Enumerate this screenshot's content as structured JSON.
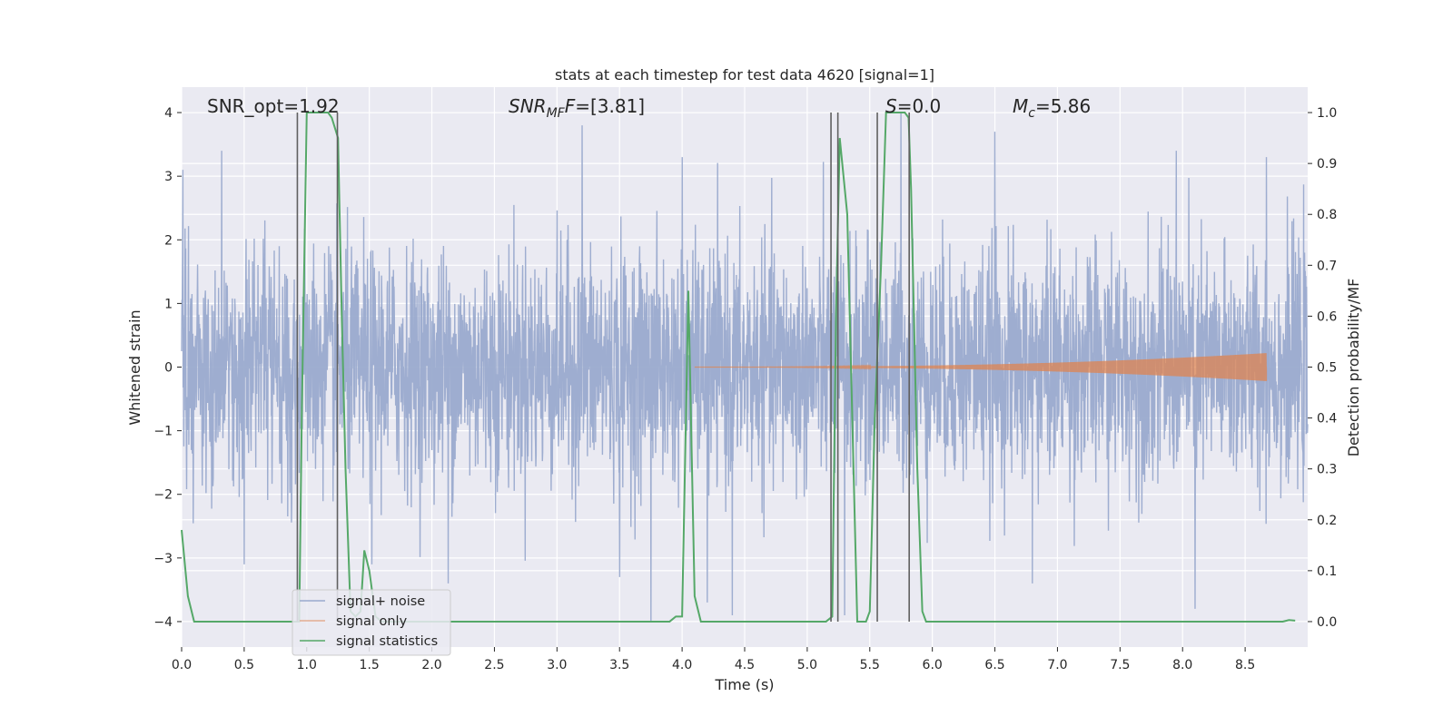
{
  "chart_data": {
    "type": "line",
    "title": "stats at each timestep for test data 4620 [signal=1]",
    "xlabel": "Time (s)",
    "ylabel": "Whitened strain",
    "ylabel_right": "Detection probability/MF",
    "xlim": [
      0,
      9.0
    ],
    "ylim": [
      -4.4,
      4.4
    ],
    "ylim_right": [
      -0.05,
      1.05
    ],
    "x_ticks": [
      0.0,
      0.5,
      1.0,
      1.5,
      2.0,
      2.5,
      3.0,
      3.5,
      4.0,
      4.5,
      5.0,
      5.5,
      6.0,
      6.5,
      7.0,
      7.5,
      8.0,
      8.5
    ],
    "x_tick_labels": [
      "0.0",
      "0.5",
      "1.0",
      "1.5",
      "2.0",
      "2.5",
      "3.0",
      "3.5",
      "4.0",
      "4.5",
      "5.0",
      "5.5",
      "6.0",
      "6.5",
      "7.0",
      "7.5",
      "8.0",
      "8.5"
    ],
    "y_ticks": [
      -4,
      -3,
      -2,
      -1,
      0,
      1,
      2,
      3,
      4
    ],
    "y_tick_labels": [
      "−4",
      "−3",
      "−2",
      "−1",
      "0",
      "1",
      "2",
      "3",
      "4"
    ],
    "y_ticks_right": [
      0.0,
      0.1,
      0.2,
      0.3,
      0.4,
      0.5,
      0.6,
      0.7,
      0.8,
      0.9,
      1.0
    ],
    "y_tick_labels_right": [
      "0.0",
      "0.1",
      "0.2",
      "0.3",
      "0.4",
      "0.5",
      "0.6",
      "0.7",
      "0.8",
      "0.9",
      "1.0"
    ],
    "grid": true,
    "legend_position": "lower-left",
    "annotations": {
      "snr_opt": "SNR_opt=1.92",
      "snr_mf_main": "SNR",
      "snr_mf_sub": "MF",
      "snr_mf_value": "=[3.81]",
      "s_label": "S",
      "s_value": "=0.0",
      "mc_main": "M",
      "mc_sub": "c",
      "mc_value": "=5.86"
    },
    "series": [
      {
        "name": "signal+ noise",
        "color": "#9aaace",
        "axis": "left",
        "description_kind": "dense noise, approx std 0.9, range about -3.9 to 3.8",
        "std": 0.9,
        "peaks": [
          {
            "x": 0.01,
            "y": 3.1
          },
          {
            "x": 0.32,
            "y": 3.4
          },
          {
            "x": 0.5,
            "y": -3.1
          },
          {
            "x": 1.52,
            "y": -3.1
          },
          {
            "x": 2.13,
            "y": -3.4
          },
          {
            "x": 3.2,
            "y": 3.8
          },
          {
            "x": 3.5,
            "y": -3.3
          },
          {
            "x": 3.75,
            "y": -4.0
          },
          {
            "x": 4.0,
            "y": 3.3
          },
          {
            "x": 4.2,
            "y": -3.7
          },
          {
            "x": 4.4,
            "y": -3.9
          },
          {
            "x": 5.3,
            "y": -3.9
          },
          {
            "x": 5.75,
            "y": 4.0
          },
          {
            "x": 6.5,
            "y": 3.7
          },
          {
            "x": 6.8,
            "y": -3.4
          },
          {
            "x": 7.95,
            "y": 3.4
          },
          {
            "x": 8.1,
            "y": -3.8
          },
          {
            "x": 8.67,
            "y": 3.3
          }
        ]
      },
      {
        "name": "signal only",
        "color": "#dd8452",
        "axis": "left",
        "chirp_start": 4.1,
        "chirp_end": 8.67,
        "final_amplitude": 0.22
      },
      {
        "name": "signal statistics",
        "color": "#55a868",
        "axis": "right",
        "x": [
          0.0,
          0.05,
          0.1,
          0.9,
          0.94,
          0.96,
          0.98,
          1.0,
          1.08,
          1.15,
          1.17,
          1.2,
          1.25,
          1.28,
          1.31,
          1.35,
          1.39,
          1.43,
          1.46,
          1.5,
          1.55,
          1.6,
          3.9,
          3.95,
          4.0,
          4.05,
          4.1,
          4.15,
          4.2,
          4.25,
          5.15,
          5.2,
          5.23,
          5.26,
          5.32,
          5.36,
          5.4,
          5.43,
          5.47,
          5.5,
          5.54,
          5.59,
          5.63,
          5.67,
          5.7,
          5.78,
          5.81,
          5.83,
          5.88,
          5.92,
          5.95,
          6.0,
          8.8,
          8.85,
          8.9
        ],
        "y": [
          0.18,
          0.05,
          0.0,
          0.0,
          0.0,
          0.4,
          0.7,
          1.0,
          1.0,
          1.0,
          1.0,
          0.99,
          0.95,
          0.6,
          0.3,
          0.02,
          0.01,
          0.02,
          0.14,
          0.1,
          0.01,
          0.0,
          0.0,
          0.01,
          0.01,
          0.65,
          0.05,
          0.0,
          0.0,
          0.0,
          0.0,
          0.01,
          0.6,
          0.95,
          0.8,
          0.4,
          0.0,
          0.0,
          0.0,
          0.02,
          0.4,
          0.7,
          1.0,
          1.0,
          1.0,
          1.0,
          0.99,
          0.85,
          0.3,
          0.02,
          0.0,
          0.0,
          0.0,
          0.003,
          0.002
        ]
      }
    ],
    "vertical_lines": {
      "color": "#606060",
      "x": [
        0.925,
        1.245,
        5.19,
        5.245,
        5.56,
        5.815
      ]
    }
  }
}
